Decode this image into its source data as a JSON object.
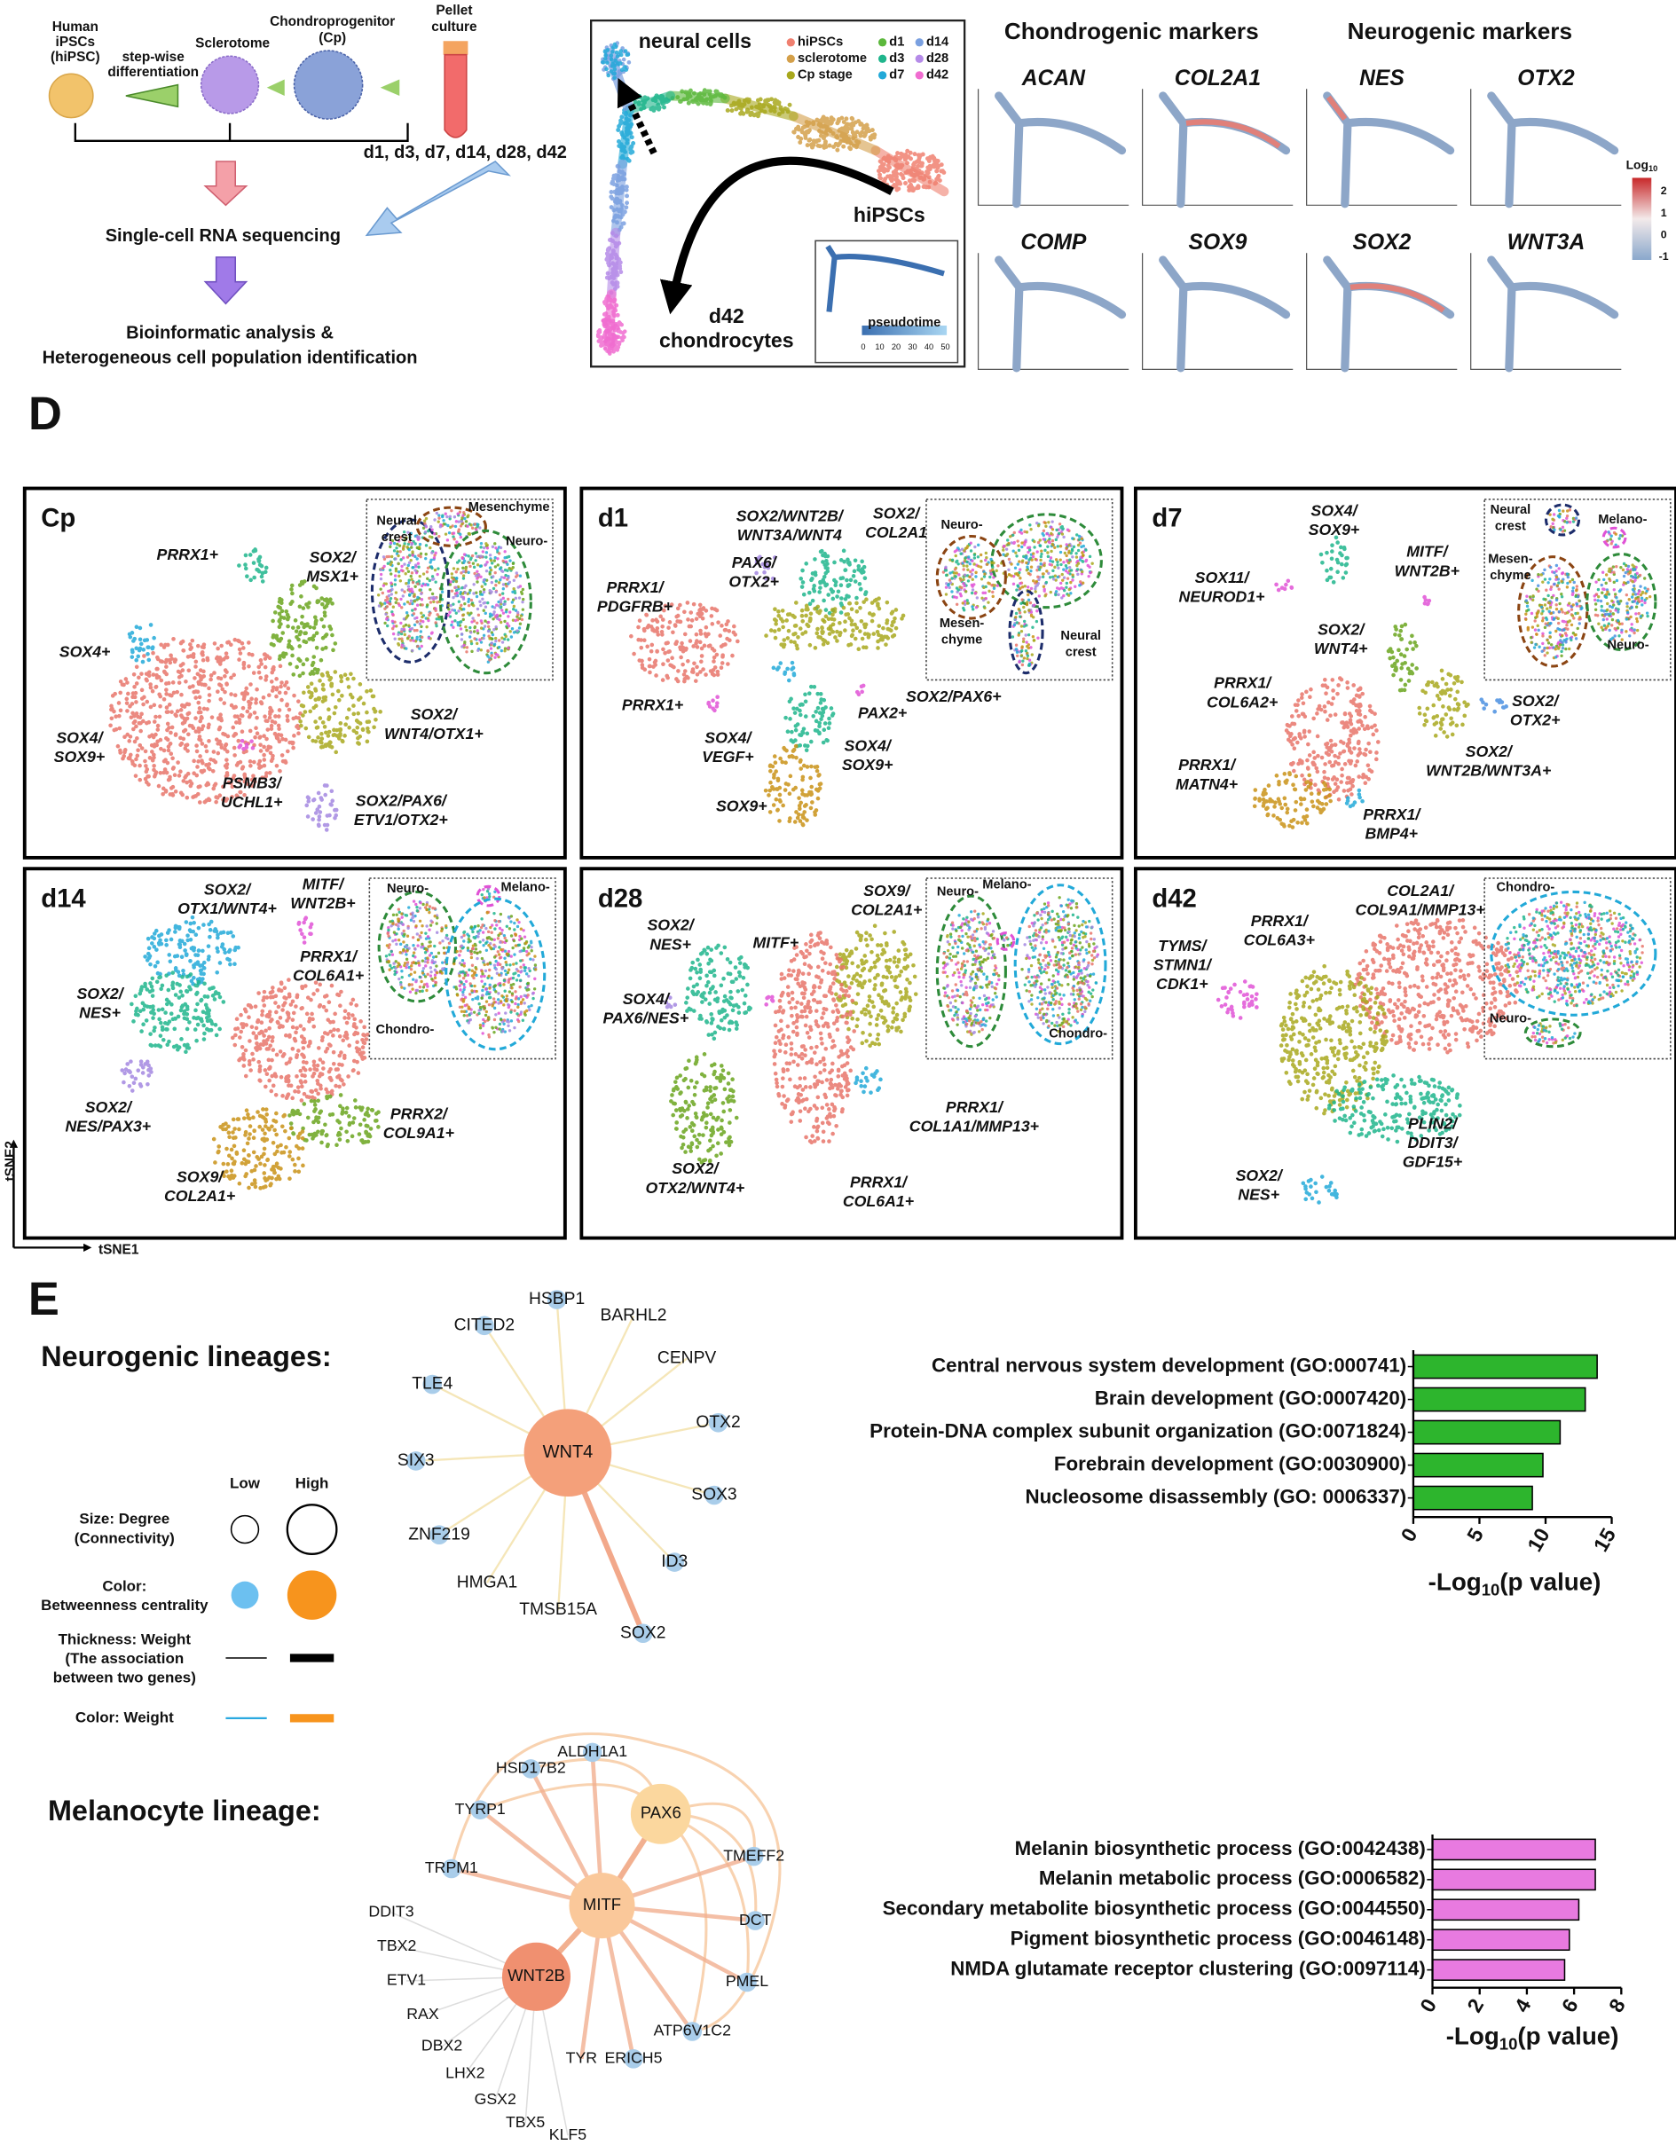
{
  "workflow": {
    "human": [
      "Human",
      "iPSCs",
      "(hiPSC)"
    ],
    "stepwise": [
      "step-wise",
      "differentiation"
    ],
    "sclerotome": "Sclerotome",
    "cp": [
      "Chondroprogenitor",
      "(Cp)"
    ],
    "pellet": [
      "Pellet",
      "culture"
    ],
    "days": "d1, d3, d7, d14, d28, d42",
    "scrna": "Single-cell RNA sequencing",
    "analysis": [
      "Bioinformatic analysis &",
      "Heterogeneous cell population identification"
    ]
  },
  "trajectory": {
    "legend": [
      {
        "name": "hiPSCs",
        "color": "#f08070"
      },
      {
        "name": "sclerotome",
        "color": "#d4a04a"
      },
      {
        "name": "Cp stage",
        "color": "#a8a81d"
      },
      {
        "name": "d1",
        "color": "#5cb83c"
      },
      {
        "name": "d3",
        "color": "#1fb58c"
      },
      {
        "name": "d7",
        "color": "#22a9d8"
      },
      {
        "name": "d14",
        "color": "#7aa0e0"
      },
      {
        "name": "d28",
        "color": "#b58be8"
      },
      {
        "name": "d42",
        "color": "#f06cd0"
      }
    ],
    "neural": "neural cells",
    "hipscs": "hiPSCs",
    "end": [
      "d42",
      "chondrocytes"
    ],
    "pseudotime": "pseudotime",
    "pseudotime_ticks": [
      0,
      10,
      20,
      30,
      40,
      50
    ]
  },
  "markers": {
    "chondrogenic": "Chondrogenic markers",
    "neurogenic": "Neurogenic markers",
    "genes": [
      "ACAN",
      "COL2A1",
      "NES",
      "OTX2",
      "COMP",
      "SOX9",
      "SOX2",
      "WNT3A"
    ],
    "scale_label": {
      "base": "Log",
      "sub": "10"
    },
    "scale_ticks": [
      2,
      1,
      0,
      -1
    ]
  },
  "panel_d": {
    "label": "D",
    "x_axis": "tSNE1",
    "y_axis": "tSNE2",
    "panels": [
      {
        "title": "Cp",
        "clusters": [
          {
            "lines": [
              "PRRX1+"
            ],
            "color": "#1fb58c"
          },
          {
            "lines": [
              "SOX2/",
              "MSX1+"
            ],
            "color": "#6aa51d"
          },
          {
            "lines": [
              "SOX4+"
            ],
            "color": "#22a9d8"
          },
          {
            "lines": [
              "SOX4/",
              "SOX9+"
            ],
            "color": "#e8746a"
          },
          {
            "lines": [
              "SOX2/",
              "WNT4/OTX1+"
            ],
            "color": "#a8a81d"
          },
          {
            "lines": [
              "PSMB3/",
              "UCHL1+"
            ],
            "color": "#e052d6"
          },
          {
            "lines": [
              "SOX2/PAX6/",
              "ETV1/OTX2+"
            ],
            "color": "#a387e0"
          }
        ],
        "inset": [
          {
            "lines": [
              "Neural",
              "crest"
            ],
            "color": "#1d2d6b"
          },
          {
            "lines": [
              "Mesenchyme"
            ],
            "color": "#8b4513"
          },
          {
            "lines": [
              "Neuro-"
            ],
            "color": "#2e8b3a"
          }
        ]
      },
      {
        "title": "d1",
        "clusters": [
          {
            "lines": [
              "SOX2/WNT2B/",
              "WNT3A/WNT4"
            ],
            "color": "#1fb58c"
          },
          {
            "lines": [
              "SOX2/",
              "COL2A1"
            ],
            "color": "#a8a81d"
          },
          {
            "lines": [
              "PAX6/",
              "OTX2+"
            ],
            "color": "#a387e0"
          },
          {
            "lines": [
              "PRRX1/",
              "PDGFRB+"
            ],
            "color": "#e8746a"
          },
          {
            "lines": [
              "PRRX1+"
            ],
            "color": "#e052d6"
          },
          {
            "lines": [
              "SOX4/",
              "VEGF+"
            ],
            "color": "#22a9d8"
          },
          {
            "lines": [
              "PAX2+"
            ],
            "color": "#e052d6"
          },
          {
            "lines": [
              "SOX2/PAX6+"
            ],
            "color": "#a8a81d"
          },
          {
            "lines": [
              "SOX4/",
              "SOX9+"
            ],
            "color": "#1fb58c"
          },
          {
            "lines": [
              "SOX9+"
            ],
            "color": "#c99216"
          }
        ],
        "inset": [
          {
            "lines": [
              "Neuro-"
            ],
            "color": "#2e8b3a"
          },
          {
            "lines": [
              "Mesen-",
              "chyme"
            ],
            "color": "#8b4513"
          },
          {
            "lines": [
              "Neural",
              "crest"
            ],
            "color": "#1d2d6b"
          }
        ]
      },
      {
        "title": "d7",
        "clusters": [
          {
            "lines": [
              "SOX4/",
              "SOX9+"
            ],
            "color": "#1fb58c"
          },
          {
            "lines": [
              "MITF/",
              "WNT2B+"
            ],
            "color": "#e052d6"
          },
          {
            "lines": [
              "SOX11/",
              "NEUROD1+"
            ],
            "color": "#e052d6"
          },
          {
            "lines": [
              "SOX2/",
              "WNT4+"
            ],
            "color": "#6aa51d"
          },
          {
            "lines": [
              "PRRX1/",
              "COL6A2+"
            ],
            "color": "#e8746a"
          },
          {
            "lines": [
              "SOX2/",
              "OTX2+"
            ],
            "color": "#4a8fe0"
          },
          {
            "lines": [
              "SOX2/",
              "WNT2B/WNT3A+"
            ],
            "color": "#a8a81d"
          },
          {
            "lines": [
              "PRRX1/",
              "MATN4+"
            ],
            "color": "#c99216"
          },
          {
            "lines": [
              "PRRX1/",
              "BMP4+"
            ],
            "color": "#22a9d8"
          }
        ],
        "inset": [
          {
            "lines": [
              "Neural",
              "crest"
            ],
            "color": "#1d2d6b"
          },
          {
            "lines": [
              "Melano-"
            ],
            "color": "#e052d6"
          },
          {
            "lines": [
              "Mesen-",
              "chyme"
            ],
            "color": "#8b4513"
          },
          {
            "lines": [
              "Neuro-"
            ],
            "color": "#2e8b3a"
          }
        ]
      },
      {
        "title": "d14",
        "clusters": [
          {
            "lines": [
              "SOX2/",
              "OTX1/WNT4+"
            ],
            "color": "#22a9d8"
          },
          {
            "lines": [
              "MITF/",
              "WNT2B+"
            ],
            "color": "#e052d6"
          },
          {
            "lines": [
              "PRRX1/",
              "COL6A1+"
            ],
            "color": "#e8746a"
          },
          {
            "lines": [
              "SOX2/",
              "NES+"
            ],
            "color": "#1fb58c"
          },
          {
            "lines": [
              "SOX2/",
              "NES/PAX3+"
            ],
            "color": "#a387e0"
          },
          {
            "lines": [
              "PRRX2/",
              "COL9A1+"
            ],
            "color": "#6aa51d"
          },
          {
            "lines": [
              "SOX9/",
              "COL2A1+"
            ],
            "color": "#c99216"
          }
        ],
        "inset": [
          {
            "lines": [
              "Neuro-"
            ],
            "color": "#2e8b3a"
          },
          {
            "lines": [
              "Melano-"
            ],
            "color": "#e052d6"
          },
          {
            "lines": [
              "Chondro-"
            ],
            "color": "#22a9d8"
          }
        ]
      },
      {
        "title": "d28",
        "clusters": [
          {
            "lines": [
              "SOX2/",
              "NES+"
            ],
            "color": "#1fb58c"
          },
          {
            "lines": [
              "MITF+"
            ],
            "color": "#e052d6"
          },
          {
            "lines": [
              "SOX9/",
              "COL2A1+"
            ],
            "color": "#a8a81d"
          },
          {
            "lines": [
              "SOX4/",
              "PAX6/NES+"
            ],
            "color": "#a387e0"
          },
          {
            "lines": [
              "PRRX1/",
              "COL1A1/MMP13+"
            ],
            "color": "#22a9d8"
          },
          {
            "lines": [
              "SOX2/",
              "OTX2/WNT4+"
            ],
            "color": "#6aa51d"
          },
          {
            "lines": [
              "PRRX1/",
              "COL6A1+"
            ],
            "color": "#e8746a"
          }
        ],
        "inset": [
          {
            "lines": [
              "Neuro-"
            ],
            "color": "#2e8b3a"
          },
          {
            "lines": [
              "Melano-"
            ],
            "color": "#e052d6"
          },
          {
            "lines": [
              "Chondro-"
            ],
            "color": "#22a9d8"
          }
        ]
      },
      {
        "title": "d42",
        "clusters": [
          {
            "lines": [
              "COL2A1/",
              "COL9A1/MMP13+"
            ],
            "color": "#e8746a"
          },
          {
            "lines": [
              "PRRX1/",
              "COL6A3+"
            ],
            "color": "#a8a81d"
          },
          {
            "lines": [
              "TYMS/",
              "STMN1/",
              "CDK1+"
            ],
            "color": "#e052d6"
          },
          {
            "lines": [
              "PLIN2/",
              "DDIT3/",
              "GDF15+"
            ],
            "color": "#1fb58c"
          },
          {
            "lines": [
              "SOX2/",
              "NES+"
            ],
            "color": "#22a9d8"
          }
        ],
        "inset": [
          {
            "lines": [
              "Chondro-"
            ],
            "color": "#22a9d8"
          },
          {
            "lines": [
              "Neuro-"
            ],
            "color": "#2e8b3a"
          }
        ]
      }
    ]
  },
  "panel_e": {
    "label": "E",
    "neurogenic": "Neurogenic lineages:",
    "melanocyte": "Melanocyte lineage:",
    "legend": {
      "low": "Low",
      "high": "High",
      "size": [
        "Size: Degree",
        "(Connectivity)"
      ],
      "color": [
        "Color:",
        "Betweenness centrality"
      ],
      "thickness": [
        "Thickness: Weight",
        "(The association",
        "between two genes)"
      ],
      "weight": "Color: Weight"
    },
    "network_1": {
      "hub": "WNT4",
      "nodes": [
        "HSBP1",
        "BARHL2",
        "CITED2",
        "CENPV",
        "TLE4",
        "OTX2",
        "SIX3",
        "SOX3",
        "ZNF219",
        "ID3",
        "HMGA1",
        "TMSB15A",
        "SOX2"
      ]
    },
    "network_2": {
      "hubs": [
        "MITF",
        "PAX6",
        "WNT2B"
      ],
      "nodes": [
        "ALDH1A1",
        "HSD17B2",
        "TYRP1",
        "TMEFF2",
        "TRPM1",
        "DCT",
        "DDIT3",
        "TBX2",
        "PMEL",
        "ETV1",
        "RAX",
        "ATP6V1C2",
        "DBX2",
        "TYR",
        "ERICH5",
        "LHX2",
        "GSX2",
        "TBX5",
        "KLF5"
      ]
    }
  },
  "chart_data": [
    {
      "type": "bar",
      "orientation": "horizontal",
      "categories": [
        "Central nervous system development (GO:000741)",
        "Brain development (GO:0007420)",
        "Protein-DNA complex subunit organization (GO:0071824)",
        "Forebrain development (GO:0030900)",
        "Nucleosome disassembly (GO: 0006337)"
      ],
      "values": [
        13.9,
        13.0,
        11.1,
        9.8,
        9.0
      ],
      "color": "#2db52d",
      "xlim": [
        0,
        15
      ],
      "xticks": [
        0,
        5,
        10,
        15
      ],
      "x_label": {
        "pre": "-Log",
        "sub": "10",
        "post": "(p value)"
      }
    },
    {
      "type": "bar",
      "orientation": "horizontal",
      "categories": [
        "Melanin biosynthetic process (GO:0042438)",
        "Melanin metabolic process (GO:0006582)",
        "Secondary metabolite biosynthetic process (GO:0044550)",
        "Pigment biosynthetic process (GO:0046148)",
        "NMDA glutamate receptor clustering (GO:0097114)"
      ],
      "values": [
        6.9,
        6.9,
        6.2,
        5.8,
        5.6
      ],
      "color": "#e87ae0",
      "xlim": [
        0,
        8
      ],
      "xticks": [
        0,
        2,
        4,
        6,
        8
      ],
      "x_label": {
        "pre": "-Log",
        "sub": "10",
        "post": "(p value)"
      }
    }
  ]
}
